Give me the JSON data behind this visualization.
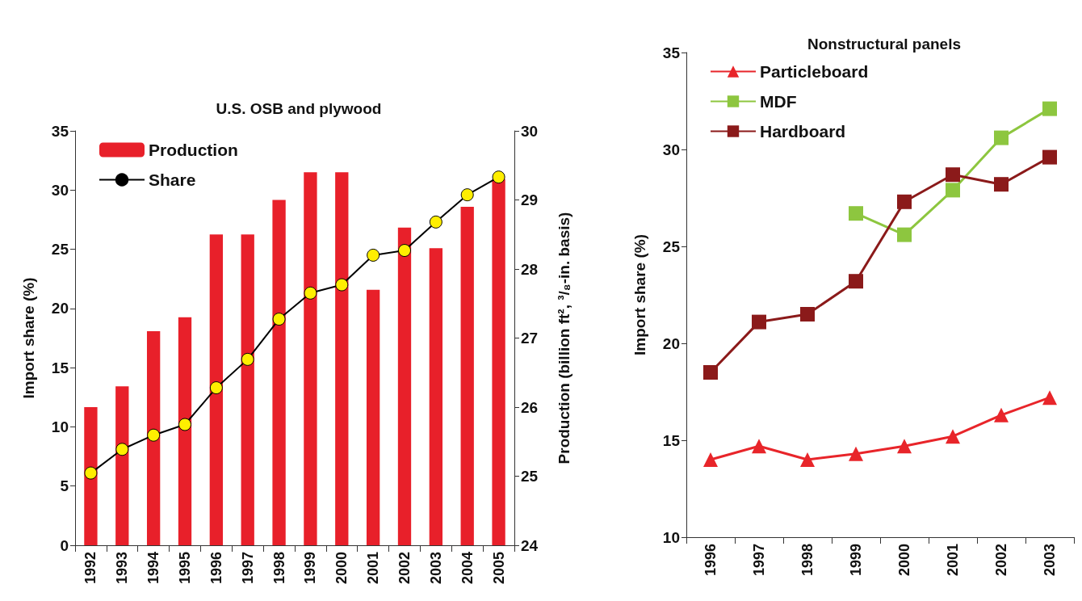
{
  "chart_data": [
    {
      "type": "bar",
      "title": "U.S. OSB and plywood",
      "ylabel": "Import share (%)",
      "y2label": "Production (billion ft², ³/₈-in. basis)",
      "categories": [
        "1992",
        "1993",
        "1994",
        "1995",
        "1996",
        "1997",
        "1998",
        "1999",
        "2000",
        "2001",
        "2002",
        "2003",
        "2004",
        "2005"
      ],
      "series": [
        {
          "name": "Production",
          "type": "bar",
          "axis": "y2",
          "color": "#e8202a",
          "values": [
            26.0,
            26.3,
            27.1,
            27.3,
            28.5,
            28.5,
            29.0,
            29.4,
            29.4,
            27.7,
            28.6,
            28.3,
            28.9,
            29.3
          ]
        },
        {
          "name": "Share",
          "type": "line",
          "color": "#000000",
          "marker": "circle",
          "colors": [
            "#ffee00",
            "#ffee00",
            "#ffee00",
            "#ffee00",
            "#ffee00",
            "#ffee00",
            "#ffee00",
            "#ffee00",
            "#ffee00",
            "#ffee00",
            "#ffee00",
            "#ffee00",
            "#ffee00",
            "#ffee00"
          ],
          "values": [
            6.1,
            8.1,
            9.3,
            10.2,
            13.3,
            15.7,
            19.1,
            21.3,
            22.0,
            24.5,
            24.9,
            27.3,
            29.6,
            31.1
          ]
        }
      ],
      "ylim": [
        0,
        35
      ],
      "yticks": [
        0,
        5,
        10,
        15,
        20,
        25,
        30,
        35
      ],
      "y2lim": [
        24,
        30
      ],
      "y2ticks": [
        24,
        25,
        26,
        27,
        28,
        29,
        30
      ],
      "grid": false,
      "legend": "top left"
    },
    {
      "type": "line",
      "title": "Nonstructural panels",
      "ylabel": "Import share (%)",
      "categories": [
        "1996",
        "1997",
        "1998",
        "1999",
        "2000",
        "2001",
        "2002",
        "2003"
      ],
      "series": [
        {
          "name": "Particleboard",
          "color": "#e8252a",
          "marker": "triangle",
          "values": [
            14.0,
            14.7,
            14.0,
            14.3,
            14.7,
            15.2,
            16.3,
            17.2
          ]
        },
        {
          "name": "MDF",
          "color": "#8dc63f",
          "marker": "square",
          "values": [
            null,
            null,
            null,
            26.7,
            25.6,
            27.9,
            30.6,
            32.1
          ]
        },
        {
          "name": "Hardboard",
          "color": "#8b1a1a",
          "marker": "square",
          "values": [
            18.5,
            21.1,
            21.5,
            23.2,
            27.3,
            28.7,
            28.2,
            29.6
          ]
        }
      ],
      "ylim": [
        10,
        35
      ],
      "yticks": [
        10,
        15,
        20,
        25,
        30,
        35
      ],
      "grid": false,
      "legend": "top left"
    }
  ]
}
